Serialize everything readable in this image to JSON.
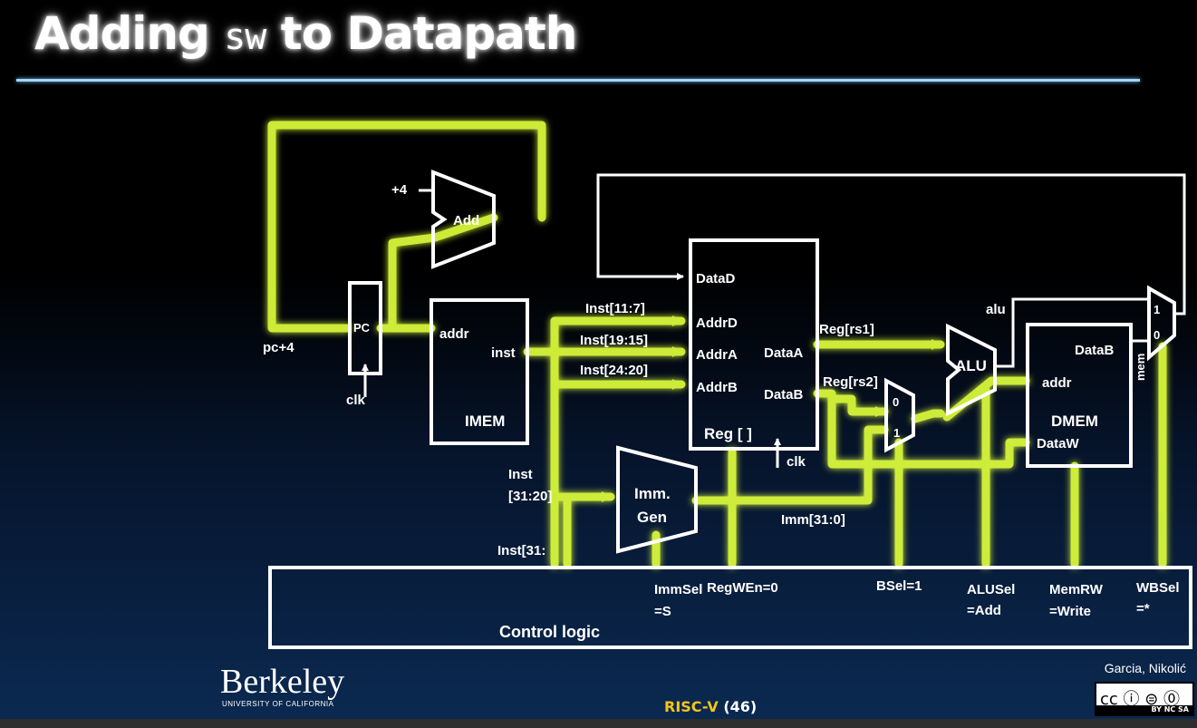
{
  "slide": {
    "title_pre": "Adding ",
    "title_code": "sw",
    "title_post": " to Datapath",
    "footer_logo": "Berkeley",
    "footer_logo_sub": "UNIVERSITY OF CALIFORNIA",
    "slide_label": "RISC-V",
    "slide_number": "(46)",
    "authors": "Garcia, Nikolić",
    "license": {
      "text": "cc ⓘ ⊜ ⓪",
      "sub": "BY  NC  SA"
    }
  },
  "diagram": {
    "colors": {
      "highlight": "#dfff3a",
      "glow": "#b8ff2a",
      "wire": "#ffffff",
      "accent": "#9fd8ff"
    },
    "labels": {
      "plus4": "+4",
      "add": "Add",
      "pc": "PC",
      "pc_plus4": "pc+4",
      "clk_pc": "clk",
      "addr_imem": "addr",
      "inst": "inst",
      "imem": "IMEM",
      "inst_11_7": "Inst[11:7]",
      "inst_19_15": "Inst[19:15]",
      "inst_24_20": "Inst[24:20]",
      "datad": "DataD",
      "addrd": "AddrD",
      "addra": "AddrA",
      "addrb": "AddrB",
      "dataa": "DataA",
      "datab": "DataB",
      "reg": "Reg [ ]",
      "clk_reg": "clk",
      "reg_rs1": "Reg[rs1]",
      "reg_rs2": "Reg[rs2]",
      "mux_b_0": "0",
      "mux_b_1": "1",
      "alu": "ALU",
      "alu_out": "alu",
      "dmem_datab": "DataB",
      "dmem_addr": "addr",
      "dmem": "DMEM",
      "dataw": "DataW",
      "mux_wb_1": "1",
      "mux_wb_0": "0",
      "mem": "mem",
      "inst_31_20_a": "Inst",
      "inst_31_20_b": "[31:20]",
      "imm_gen_a": "Imm.",
      "imm_gen_b": "Gen",
      "imm_31_0": "Imm[31:0]",
      "inst_31": "Inst[31:",
      "control_logic": "Control logic"
    },
    "controls": [
      {
        "line1": "ImmSel",
        "line2": "=S"
      },
      {
        "line1": "RegWEn=0",
        "line2": ""
      },
      {
        "line1": "BSel=1",
        "line2": ""
      },
      {
        "line1": "ALUSel",
        "line2": "=Add"
      },
      {
        "line1": "MemRW",
        "line2": "=Write"
      },
      {
        "line1": "WBSel",
        "line2": "=*"
      }
    ]
  }
}
